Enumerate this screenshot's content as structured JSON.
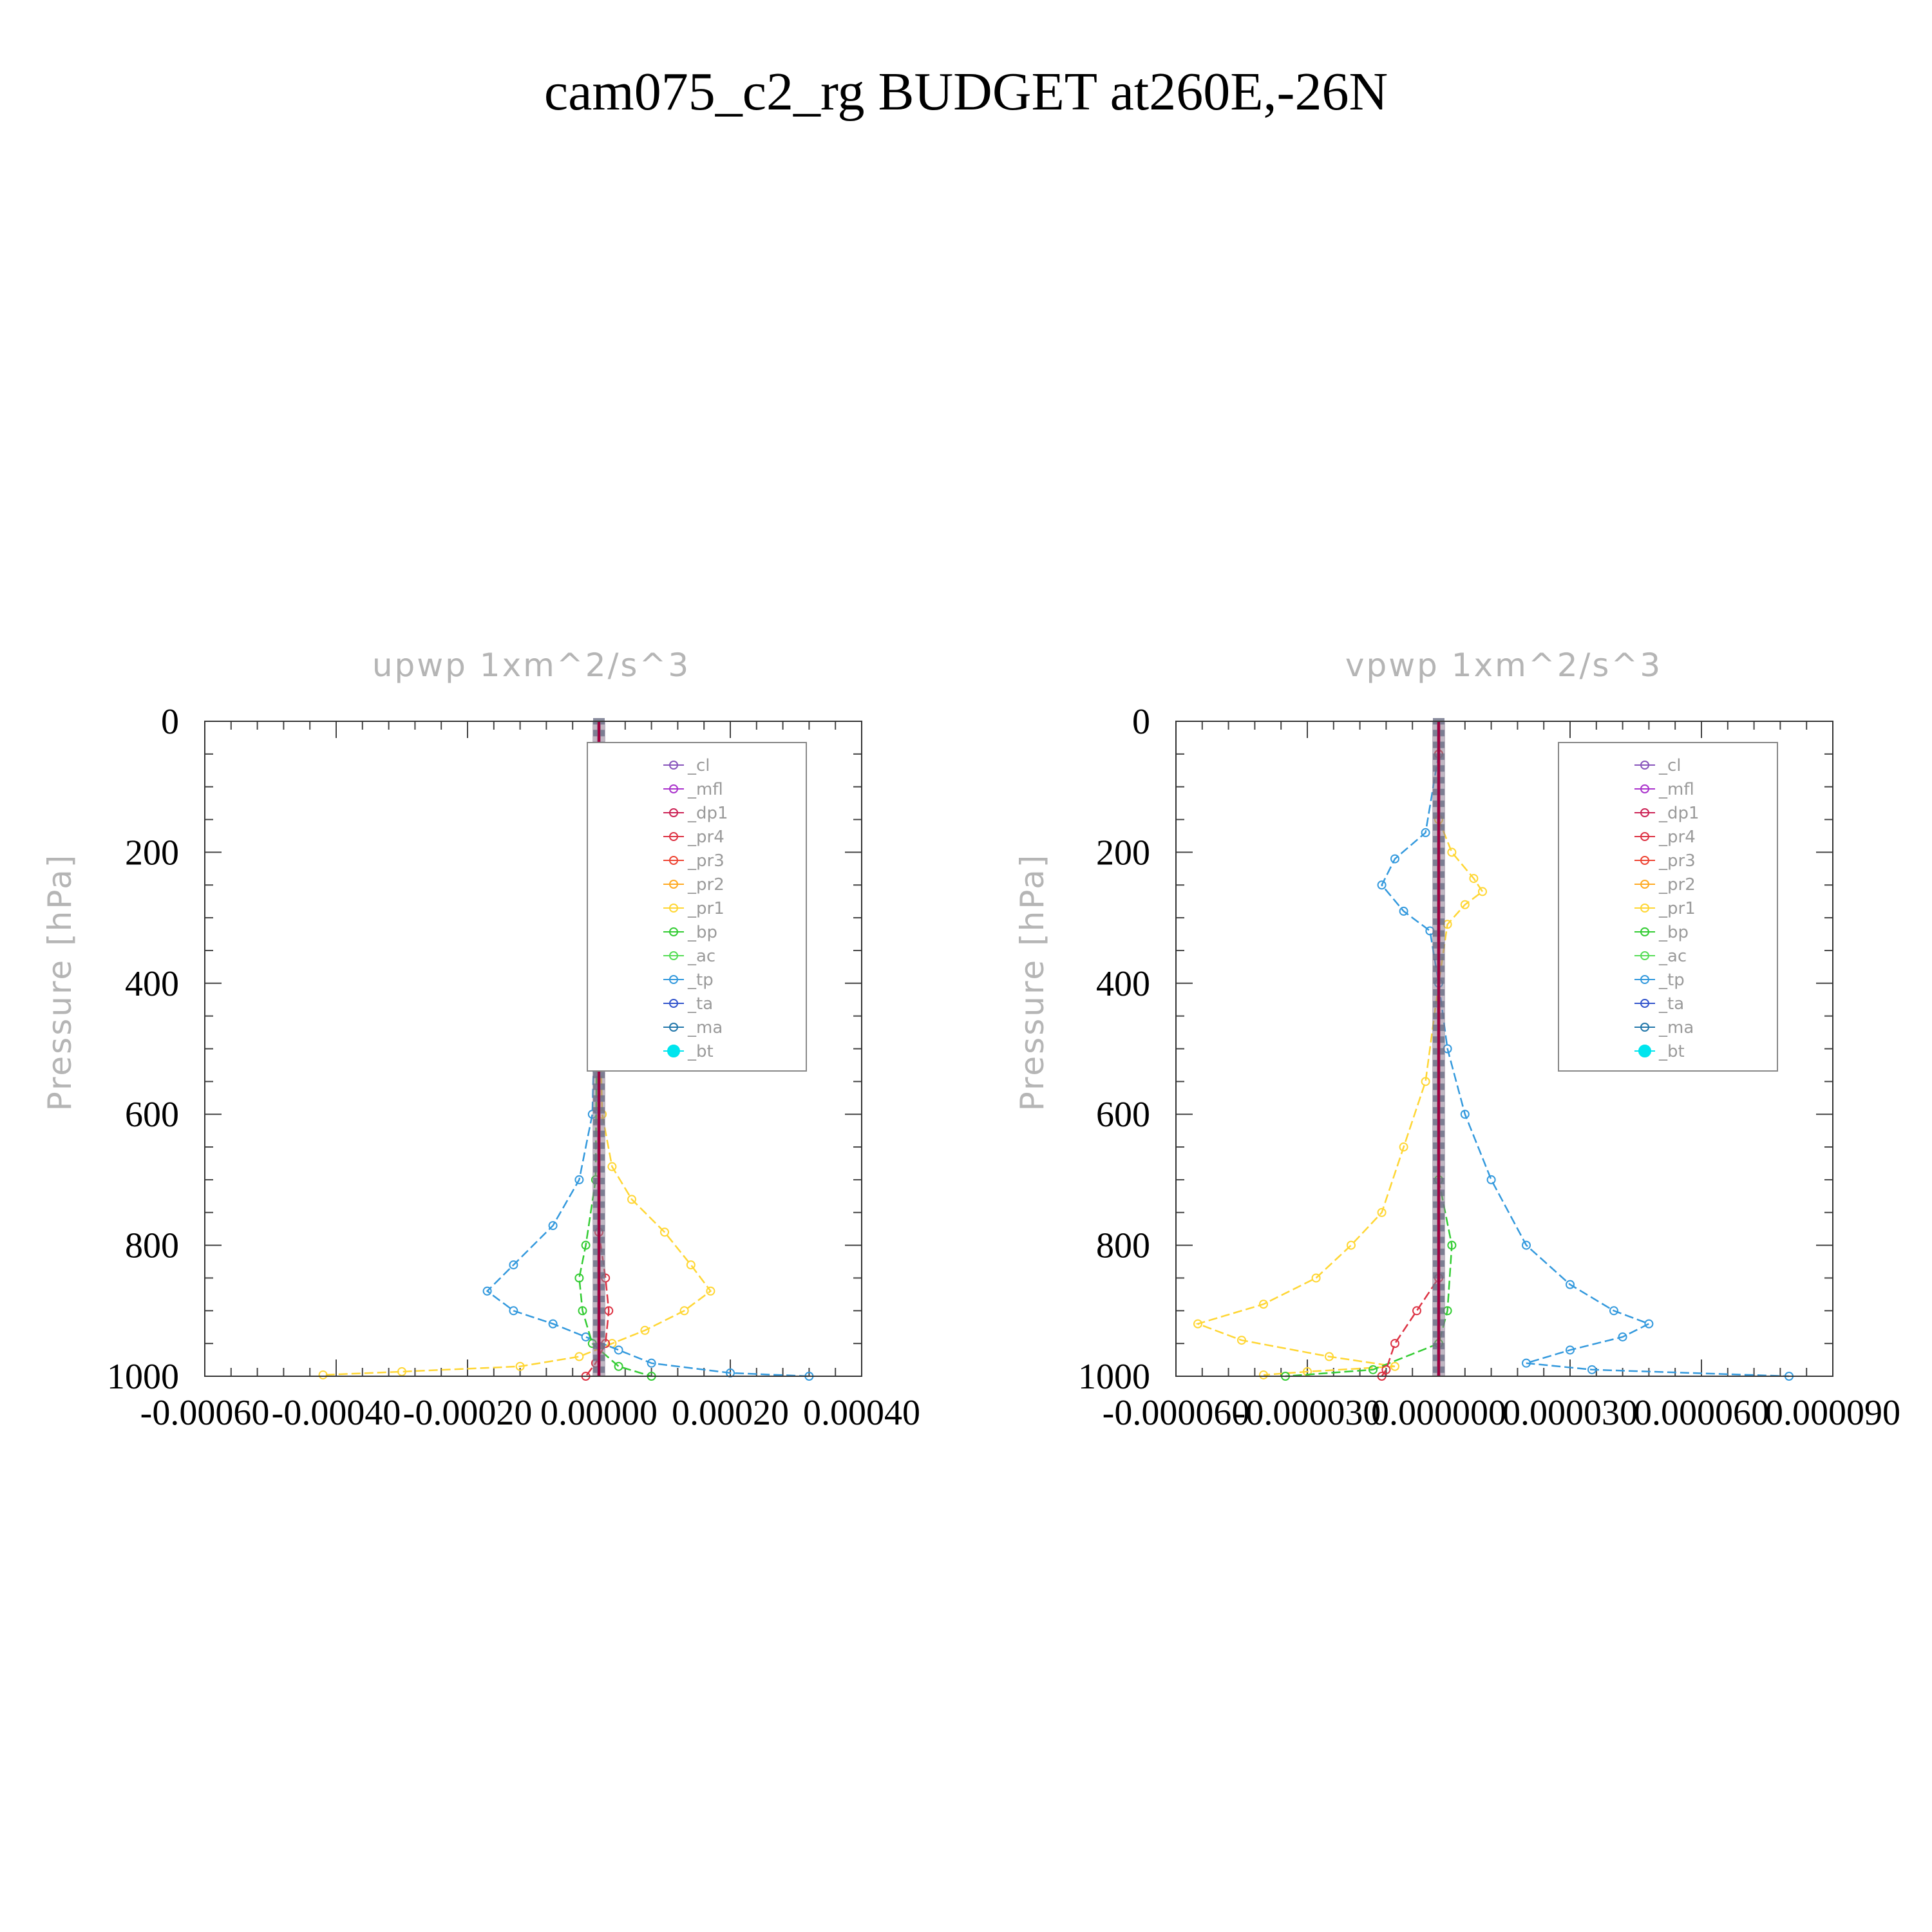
{
  "chart_data": [
    {
      "type": "line",
      "suptitle": "cam075_c2_rg  BUDGET at260E,-26N",
      "title": "upwp   1xm^2/s^3",
      "ylabel": "Pressure [hPa]",
      "xlabel": "",
      "xlim": [
        -0.0006,
        0.0004
      ],
      "ylim": [
        1000,
        0
      ],
      "x_ticks": [
        "-0.00060",
        "-0.00040",
        "-0.00020",
        "0.00000",
        "0.00020",
        "0.00040"
      ],
      "x_tick_values": [
        -0.0006,
        -0.0004,
        -0.0002,
        0.0,
        0.0002,
        0.0004
      ],
      "y_ticks": [
        "0",
        "200",
        "400",
        "600",
        "800",
        "1000"
      ],
      "y_tick_values": [
        0,
        200,
        400,
        600,
        800,
        1000
      ],
      "legend_position": "top-right",
      "legend": [
        "_cl",
        "_mfl",
        "_dp1",
        "_pr4",
        "_pr3",
        "_pr2",
        "_pr1",
        "_bp",
        "_ac",
        "_tp",
        "_ta",
        "_ma",
        "_bt"
      ],
      "series": [
        {
          "name": "_pr1",
          "color": "#ffd633",
          "points": [
            [
              0.0,
              50
            ],
            [
              0.0,
              400
            ],
            [
              5e-06,
              600
            ],
            [
              2e-05,
              680
            ],
            [
              5e-05,
              730
            ],
            [
              0.0001,
              780
            ],
            [
              0.00014,
              830
            ],
            [
              0.00017,
              870
            ],
            [
              0.00013,
              900
            ],
            [
              7e-05,
              930
            ],
            [
              2e-05,
              950
            ],
            [
              -3e-05,
              970
            ],
            [
              -0.00012,
              985
            ],
            [
              -0.0003,
              993
            ],
            [
              -0.00042,
              998
            ]
          ]
        },
        {
          "name": "_tp",
          "color": "#3399dd",
          "points": [
            [
              0.0,
              50
            ],
            [
              -5e-06,
              400
            ],
            [
              -1e-05,
              600
            ],
            [
              -3e-05,
              700
            ],
            [
              -7e-05,
              770
            ],
            [
              -0.00013,
              830
            ],
            [
              -0.00017,
              870
            ],
            [
              -0.00013,
              900
            ],
            [
              -7e-05,
              920
            ],
            [
              -2e-05,
              940
            ],
            [
              3e-05,
              960
            ],
            [
              8e-05,
              980
            ],
            [
              0.0002,
              995
            ],
            [
              0.00032,
              1000
            ]
          ]
        },
        {
          "name": "_bp",
          "color": "#33cc33",
          "points": [
            [
              0.0,
              50
            ],
            [
              -5e-06,
              700
            ],
            [
              -2e-05,
              800
            ],
            [
              -3e-05,
              850
            ],
            [
              -2.5e-05,
              900
            ],
            [
              -1e-05,
              950
            ],
            [
              3e-05,
              985
            ],
            [
              8e-05,
              1000
            ]
          ]
        },
        {
          "name": "_pr4",
          "color": "#dd3344",
          "points": [
            [
              0.0,
              50
            ],
            [
              0.0,
              780
            ],
            [
              1e-05,
              850
            ],
            [
              1.5e-05,
              900
            ],
            [
              1e-05,
              950
            ],
            [
              -5e-06,
              980
            ],
            [
              -2e-05,
              1000
            ]
          ]
        },
        {
          "name": "_dp1",
          "color": "#a00040",
          "points": [
            [
              0.0,
              0
            ],
            [
              0.0,
              1000
            ]
          ]
        }
      ]
    },
    {
      "type": "line",
      "title": "vpwp   1xm^2/s^3",
      "ylabel": "Pressure [hPa]",
      "xlabel": "",
      "xlim": [
        -6e-05,
        9e-05
      ],
      "ylim": [
        1000,
        0
      ],
      "x_ticks": [
        "-0.000060",
        "-0.000030",
        "0.000000",
        "0.000030",
        "0.000060",
        "0.000090"
      ],
      "x_tick_values": [
        -6e-05,
        -3e-05,
        0.0,
        3e-05,
        6e-05,
        9e-05
      ],
      "y_ticks": [
        "0",
        "200",
        "400",
        "600",
        "800",
        "1000"
      ],
      "y_tick_values": [
        0,
        200,
        400,
        600,
        800,
        1000
      ],
      "legend_position": "top-right",
      "legend": [
        "_cl",
        "_mfl",
        "_dp1",
        "_pr4",
        "_pr3",
        "_pr2",
        "_pr1",
        "_bp",
        "_ac",
        "_tp",
        "_ta",
        "_ma",
        "_bt"
      ],
      "series": [
        {
          "name": "_pr1",
          "color": "#ffd633",
          "points": [
            [
              0.0,
              50
            ],
            [
              0.0,
              150
            ],
            [
              3e-06,
              200
            ],
            [
              8e-06,
              240
            ],
            [
              1e-05,
              260
            ],
            [
              6e-06,
              280
            ],
            [
              2e-06,
              310
            ],
            [
              0.0,
              400
            ],
            [
              -3e-06,
              550
            ],
            [
              -8e-06,
              650
            ],
            [
              -1.3e-05,
              750
            ],
            [
              -2e-05,
              800
            ],
            [
              -2.8e-05,
              850
            ],
            [
              -4e-05,
              890
            ],
            [
              -5.5e-05,
              920
            ],
            [
              -4.5e-05,
              945
            ],
            [
              -2.5e-05,
              970
            ],
            [
              -1e-05,
              985
            ],
            [
              -3e-05,
              993
            ],
            [
              -4e-05,
              998
            ]
          ]
        },
        {
          "name": "_tp",
          "color": "#3399dd",
          "points": [
            [
              0.0,
              50
            ],
            [
              -3e-06,
              170
            ],
            [
              -1e-05,
              210
            ],
            [
              -1.3e-05,
              250
            ],
            [
              -8e-06,
              290
            ],
            [
              -2e-06,
              320
            ],
            [
              0.0,
              400
            ],
            [
              2e-06,
              500
            ],
            [
              6e-06,
              600
            ],
            [
              1.2e-05,
              700
            ],
            [
              2e-05,
              800
            ],
            [
              3e-05,
              860
            ],
            [
              4e-05,
              900
            ],
            [
              4.8e-05,
              920
            ],
            [
              4.2e-05,
              940
            ],
            [
              3e-05,
              960
            ],
            [
              2e-05,
              980
            ],
            [
              3.5e-05,
              990
            ],
            [
              8e-05,
              1000
            ]
          ]
        },
        {
          "name": "_bp",
          "color": "#33cc33",
          "points": [
            [
              0.0,
              50
            ],
            [
              0.0,
              700
            ],
            [
              3e-06,
              800
            ],
            [
              2e-06,
              900
            ],
            [
              0.0,
              950
            ],
            [
              -1.5e-05,
              990
            ],
            [
              -3.5e-05,
              1000
            ]
          ]
        },
        {
          "name": "_pr4",
          "color": "#dd3344",
          "points": [
            [
              0.0,
              50
            ],
            [
              0.0,
              850
            ],
            [
              -5e-06,
              900
            ],
            [
              -1e-05,
              950
            ],
            [
              -1.2e-05,
              990
            ],
            [
              -1.3e-05,
              1000
            ]
          ]
        },
        {
          "name": "_dp1",
          "color": "#a00040",
          "points": [
            [
              0.0,
              0
            ],
            [
              0.0,
              1000
            ]
          ]
        }
      ]
    }
  ]
}
